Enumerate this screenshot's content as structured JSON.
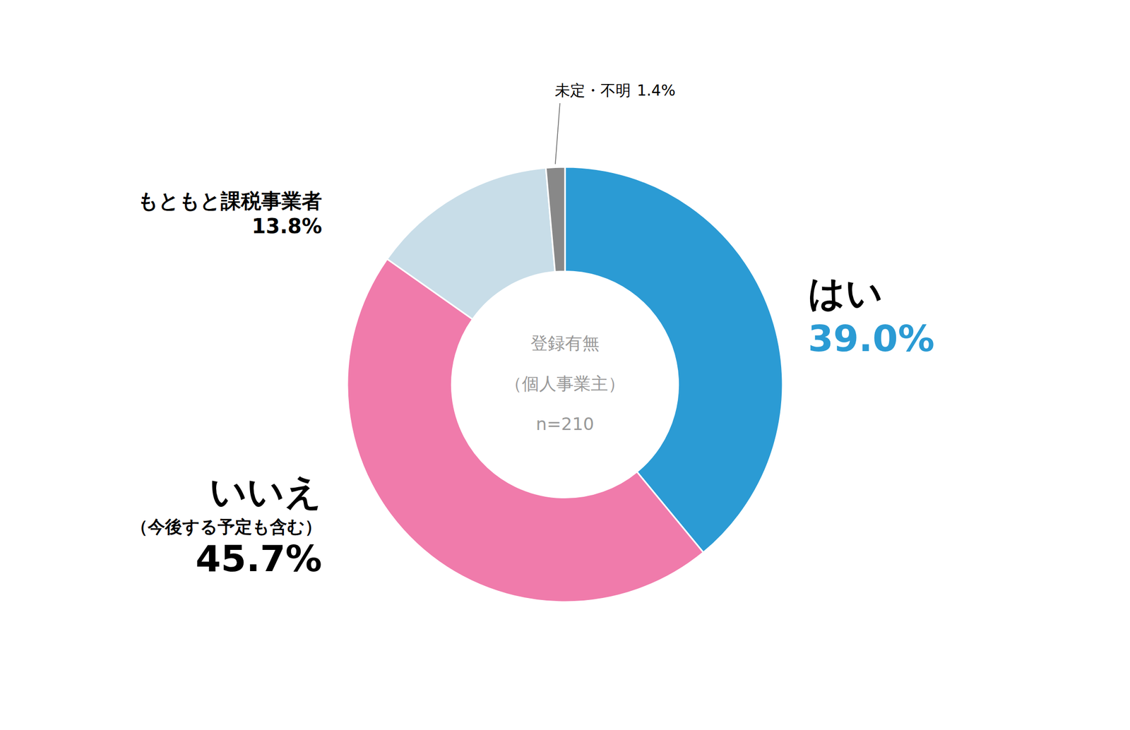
{
  "chart_data": {
    "type": "pie",
    "title": [
      "登録有無",
      "（個人事業主）",
      "n=210"
    ],
    "categories": [
      "はい",
      "いいえ",
      "もともと課税事業者",
      "未定・不明"
    ],
    "values": [
      39.0,
      45.7,
      13.8,
      1.4
    ],
    "value_labels": [
      "39.0%",
      "45.7%",
      "13.8%",
      "1.4%"
    ],
    "colors": [
      "#2B9BD4",
      "#F07BAB",
      "#C8DDE8",
      "#888888"
    ],
    "data_labels": true,
    "annotations": [
      {
        "text": "（今後する予定も含む）",
        "category": "いいえ"
      }
    ]
  }
}
